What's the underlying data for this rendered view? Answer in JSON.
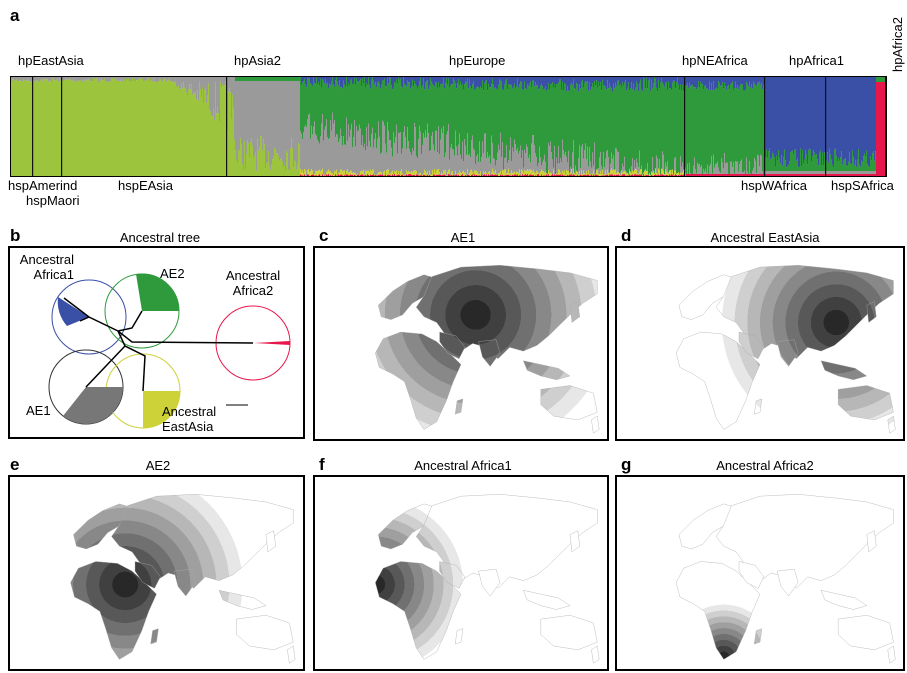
{
  "panel_letters": [
    "a",
    "b",
    "c",
    "d",
    "e",
    "f",
    "g"
  ],
  "structure": {
    "populations_top": [
      "hpEastAsia",
      "hpAsia2",
      "hpEurope",
      "hpNEAfrica",
      "hpAfrica1",
      "hpAfrica2"
    ],
    "subpopulations_bottom": [
      "hspAmerind",
      "hspMaori",
      "hspEAsia",
      "hspWAfrica",
      "hspSAfrica"
    ],
    "colors": {
      "green_light": "#9cc43c",
      "grey": "#9a9a9a",
      "green_dark": "#2e9a3c",
      "blue": "#3a4fa6",
      "red": "#e8174b",
      "yellow": "#cdd238"
    }
  },
  "tree": {
    "title": "Ancestral tree",
    "nodes": [
      "Ancestral\nAfrica1",
      "AE2",
      "Ancestral\nAfrica2",
      "AE1",
      "Ancestral\nEastAsia"
    ]
  },
  "maps": [
    {
      "letter": "c",
      "title": "AE1"
    },
    {
      "letter": "d",
      "title": "Ancestral EastAsia"
    },
    {
      "letter": "e",
      "title": "AE2"
    },
    {
      "letter": "f",
      "title": "Ancestral Africa1"
    },
    {
      "letter": "g",
      "title": "Ancestral Africa2"
    }
  ]
}
